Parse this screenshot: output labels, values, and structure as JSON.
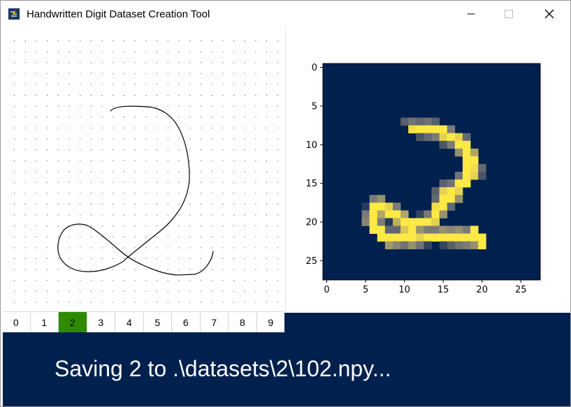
{
  "window": {
    "title": "Handwritten Digit Dataset Creation Tool"
  },
  "preview": {
    "x_ticks": [
      "0",
      "5",
      "10",
      "15",
      "20",
      "25"
    ],
    "y_ticks": [
      "0",
      "5",
      "10",
      "15",
      "20",
      "25"
    ]
  },
  "digits": [
    "0",
    "1",
    "2",
    "3",
    "4",
    "5",
    "6",
    "7",
    "8",
    "9"
  ],
  "selected_digit": "2",
  "status": {
    "message": "Saving 2 to .\\datasets\\2\\102.npy..."
  },
  "colors": {
    "selected": "#2e8b00",
    "status_bg": "#00204e",
    "cmap_low": "#00204e",
    "cmap_high": "#ffe945"
  }
}
